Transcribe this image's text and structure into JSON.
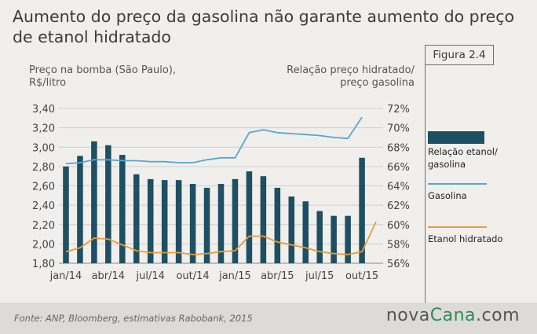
{
  "header": {
    "title": "Aumento do preço da gasolina não garante aumento do preço de etanol hidratado",
    "figure_label": "Figura 2.4"
  },
  "axis_titles": {
    "left_line1": "Preço na bomba (São Paulo),",
    "left_line2": "R$/litro",
    "right_line1": "Relação preço hidratado/",
    "right_line2": "preço gasolina"
  },
  "legend": {
    "ratio_line1": "Relação etanol/",
    "ratio_line2": "gasolina",
    "gasoline": "Gasolina",
    "ethanol": "Etanol hidratado"
  },
  "footer": {
    "source": "Fonte: ANP, Bloomberg, estimativas Rabobank, 2015",
    "logo_part1": "nova",
    "logo_part2": "Cana",
    "logo_part3": ".com"
  },
  "colors": {
    "bar": "#1f4f63",
    "gasoline": "#5aa5d4",
    "ethanol": "#e89c3a",
    "grid": "#cfcfcf"
  },
  "chart_data": {
    "type": "bar",
    "x_tick_labels": [
      "jan/14",
      "abr/14",
      "jul/14",
      "out/14",
      "jan/15",
      "abr/15",
      "jul/15",
      "out/15"
    ],
    "categories": [
      "jan/14",
      "fev/14",
      "mar/14",
      "abr/14",
      "mai/14",
      "jun/14",
      "jul/14",
      "ago/14",
      "set/14",
      "out/14",
      "nov/14",
      "dez/14",
      "jan/15",
      "fev/15",
      "mar/15",
      "abr/15",
      "mai/15",
      "jun/15",
      "jul/15",
      "ago/15",
      "set/15",
      "out/15",
      "nov/15"
    ],
    "left_axis": {
      "ylim": [
        1.8,
        3.4
      ],
      "ticks": [
        "1,80",
        "2,00",
        "2,20",
        "2,40",
        "2,60",
        "2,80",
        "3,00",
        "3,20",
        "3,40"
      ]
    },
    "right_axis": {
      "ylim": [
        56,
        72
      ],
      "ticks": [
        "56%",
        "58%",
        "60%",
        "62%",
        "64%",
        "66%",
        "68%",
        "70%",
        "72%"
      ]
    },
    "series": [
      {
        "name": "Relação etanol/ gasolina",
        "kind": "bar",
        "axis": "right",
        "values": [
          66.0,
          67.1,
          68.6,
          68.2,
          67.2,
          65.2,
          64.7,
          64.6,
          64.6,
          64.2,
          63.8,
          64.2,
          64.7,
          65.5,
          65.0,
          63.8,
          62.9,
          62.4,
          61.4,
          60.9,
          60.9,
          66.9,
          null
        ]
      },
      {
        "name": "Gasolina",
        "kind": "line",
        "axis": "left",
        "values": [
          2.83,
          2.84,
          2.87,
          2.87,
          2.86,
          2.86,
          2.85,
          2.85,
          2.84,
          2.84,
          2.87,
          2.89,
          2.89,
          3.15,
          3.18,
          3.15,
          3.14,
          3.13,
          3.12,
          3.1,
          3.09,
          3.31,
          null
        ]
      },
      {
        "name": "Etanol hidratado",
        "kind": "line",
        "axis": "left",
        "values": [
          1.92,
          1.96,
          2.06,
          2.05,
          1.99,
          1.93,
          1.91,
          1.91,
          1.91,
          1.89,
          1.9,
          1.92,
          1.93,
          2.08,
          2.08,
          2.02,
          1.99,
          1.96,
          1.92,
          1.9,
          1.89,
          1.92,
          2.23
        ]
      }
    ],
    "grid": true,
    "legend_position": "right"
  }
}
